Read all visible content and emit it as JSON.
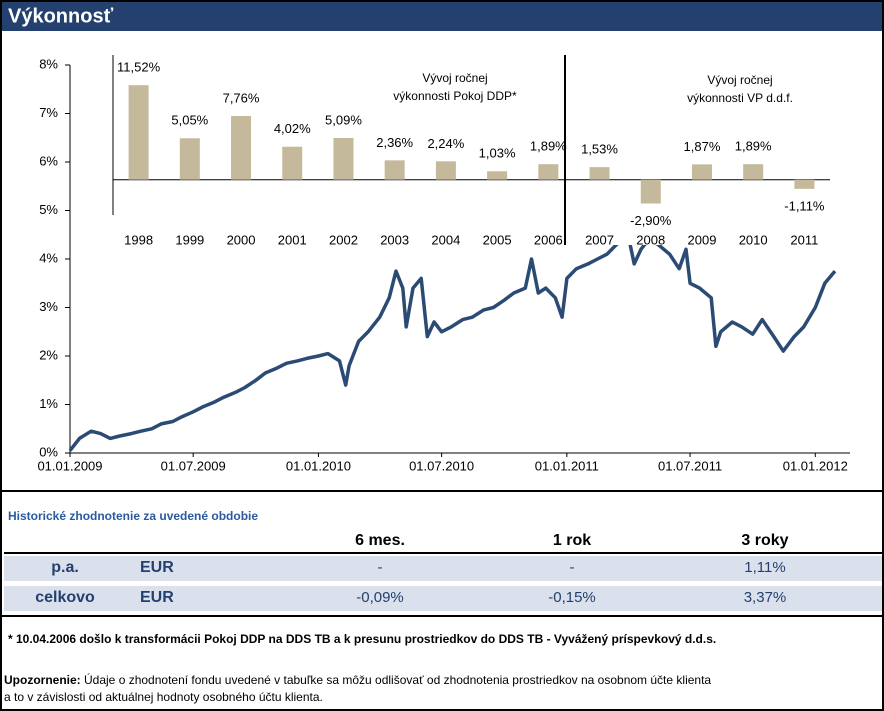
{
  "header": {
    "title": "Výkonnosť"
  },
  "chart_data": [
    {
      "type": "line",
      "x": [
        "01.01.2009",
        "15.01.2009",
        "01.02.2009",
        "15.02.2009",
        "01.03.2009",
        "15.03.2009",
        "01.04.2009",
        "15.04.2009",
        "01.05.2009",
        "15.05.2009",
        "01.06.2009",
        "15.06.2009",
        "01.07.2009",
        "15.07.2009",
        "01.08.2009",
        "15.08.2009",
        "01.09.2009",
        "15.09.2009",
        "01.10.2009",
        "15.10.2009",
        "01.11.2009",
        "15.11.2009",
        "01.12.2009",
        "15.12.2009",
        "01.01.2010",
        "15.01.2010",
        "01.02.2010",
        "10.02.2010",
        "15.02.2010",
        "01.03.2010",
        "15.03.2010",
        "01.04.2010",
        "15.04.2010",
        "25.04.2010",
        "05.05.2010",
        "10.05.2010",
        "20.05.2010",
        "01.06.2010",
        "10.06.2010",
        "20.06.2010",
        "01.07.2010",
        "15.07.2010",
        "01.08.2010",
        "15.08.2010",
        "01.09.2010",
        "15.09.2010",
        "01.10.2010",
        "15.10.2010",
        "01.11.2010",
        "10.11.2010",
        "20.11.2010",
        "01.12.2010",
        "15.12.2010",
        "25.12.2010",
        "01.01.2011",
        "15.01.2011",
        "01.02.2011",
        "15.02.2011",
        "01.03.2011",
        "15.03.2011",
        "01.04.2011",
        "10.04.2011",
        "20.04.2011",
        "01.05.2011",
        "15.05.2011",
        "01.06.2011",
        "15.06.2011",
        "25.06.2011",
        "01.07.2011",
        "15.07.2011",
        "01.08.2011",
        "08.08.2011",
        "15.08.2011",
        "01.09.2011",
        "15.09.2011",
        "01.10.2011",
        "15.10.2011",
        "01.11.2011",
        "15.11.2011",
        "01.12.2011",
        "15.12.2011",
        "01.01.2012",
        "15.01.2012",
        "30.01.2012"
      ],
      "values": [
        0.05,
        0.3,
        0.45,
        0.4,
        0.3,
        0.35,
        0.4,
        0.45,
        0.5,
        0.6,
        0.65,
        0.75,
        0.85,
        0.95,
        1.05,
        1.15,
        1.25,
        1.35,
        1.5,
        1.65,
        1.75,
        1.85,
        1.9,
        1.95,
        2.0,
        2.05,
        1.9,
        1.4,
        1.8,
        2.3,
        2.5,
        2.8,
        3.2,
        3.75,
        3.4,
        2.6,
        3.4,
        3.6,
        2.4,
        2.7,
        2.5,
        2.6,
        2.75,
        2.8,
        2.95,
        3.0,
        3.15,
        3.3,
        3.4,
        4.0,
        3.3,
        3.4,
        3.2,
        2.8,
        3.6,
        3.8,
        3.9,
        4.0,
        4.1,
        4.3,
        4.5,
        3.9,
        4.2,
        4.4,
        4.3,
        4.1,
        3.8,
        4.2,
        3.5,
        3.4,
        3.2,
        2.2,
        2.5,
        2.7,
        2.6,
        2.45,
        2.75,
        2.4,
        2.1,
        2.4,
        2.6,
        3.0,
        3.5,
        3.75
      ],
      "color": "#2b4a74",
      "xlim": [
        "01.01.2009",
        "21.02.2012"
      ],
      "xticks": [
        "01.01.2009",
        "01.07.2009",
        "01.01.2010",
        "01.07.2010",
        "01.01.2011",
        "01.07.2011",
        "01.01.2012"
      ],
      "ylim": [
        0,
        8
      ],
      "yticks": [
        {
          "value": 0,
          "label": "0%"
        },
        {
          "value": 1,
          "label": "1%"
        },
        {
          "value": 2,
          "label": "2%"
        },
        {
          "value": 3,
          "label": "3%"
        },
        {
          "value": 4,
          "label": "4%"
        },
        {
          "value": 5,
          "label": "5%"
        },
        {
          "value": 6,
          "label": "6%"
        },
        {
          "value": 7,
          "label": "7%"
        },
        {
          "value": 8,
          "label": "8%"
        }
      ]
    },
    {
      "type": "bar",
      "categories": [
        "1998",
        "1999",
        "2000",
        "2001",
        "2002",
        "2003",
        "2004",
        "2005",
        "2006",
        "2007",
        "2008",
        "2009",
        "2010",
        "2011"
      ],
      "values": [
        11.52,
        5.05,
        7.76,
        4.02,
        5.09,
        2.36,
        2.24,
        1.03,
        1.89,
        1.53,
        -2.9,
        1.87,
        1.89,
        -1.11
      ],
      "value_labels": [
        "11,52%",
        "5,05%",
        "7,76%",
        "4,02%",
        "5,09%",
        "2,36%",
        "2,24%",
        "1,03%",
        "1,89%",
        "1,53%",
        "-2,90%",
        "1,87%",
        "1,89%",
        "-1,11%"
      ],
      "color": "#c5b99b",
      "ylim": [
        -4.3,
        15.2
      ],
      "annotations": [
        "Vývoj  ročnej",
        "výkonnosti Pokoj DDP*",
        "Vývoj  ročnej",
        "výkonnosti VP d.d.f."
      ]
    }
  ],
  "table": {
    "title": "Historické zhodnotenie za uvedené obdobie",
    "columns": [
      "6 mes.",
      "1 rok",
      "3 roky"
    ],
    "rows": [
      [
        "p.a.",
        "EUR",
        "-",
        "-",
        "1,11%"
      ],
      [
        "celkovo",
        "EUR",
        "-0,09%",
        "-0,15%",
        "3,37%"
      ]
    ]
  },
  "notes": {
    "footnote": "* 10.04.2006 došlo k transformácii Pokoj DDP na DDS TB a k presunu prostriedkov do DDS TB - Vyvážený príspevkový d.d.s.",
    "warning_label": "Upozornenie:",
    "warning_line1": " Údaje o zhodnotení fondu uvedené v tabuľke sa môžu odlišovať od zhodnotenia prostriedkov na osobnom účte klienta",
    "warning_line2": "a to v závislosti od aktuálnej hodnoty osobného účtu klienta."
  }
}
